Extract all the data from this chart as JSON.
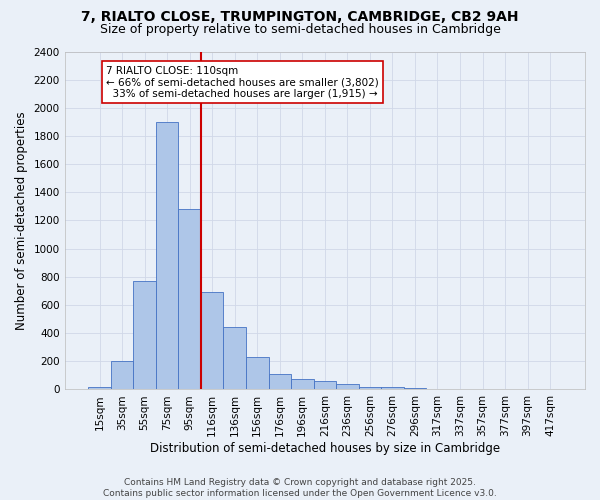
{
  "title_line1": "7, RIALTO CLOSE, TRUMPINGTON, CAMBRIDGE, CB2 9AH",
  "title_line2": "Size of property relative to semi-detached houses in Cambridge",
  "xlabel": "Distribution of semi-detached houses by size in Cambridge",
  "ylabel": "Number of semi-detached properties",
  "categories": [
    "15sqm",
    "35sqm",
    "55sqm",
    "75sqm",
    "95sqm",
    "116sqm",
    "136sqm",
    "156sqm",
    "176sqm",
    "196sqm",
    "216sqm",
    "236sqm",
    "256sqm",
    "276sqm",
    "296sqm",
    "317sqm",
    "337sqm",
    "357sqm",
    "377sqm",
    "397sqm",
    "417sqm"
  ],
  "values": [
    20,
    200,
    770,
    1900,
    1280,
    690,
    440,
    230,
    110,
    75,
    60,
    40,
    20,
    15,
    10,
    5,
    3,
    2,
    1,
    1,
    0
  ],
  "bar_color": "#aec6e8",
  "bar_edge_color": "#4472c4",
  "grid_color": "#d0d8e8",
  "background_color": "#eaf0f8",
  "vline_x_index": 5,
  "vline_color": "#cc0000",
  "annotation_line1": "7 RIALTO CLOSE: 110sqm",
  "annotation_line2": "← 66% of semi-detached houses are smaller (3,802)",
  "annotation_line3": "  33% of semi-detached houses are larger (1,915) →",
  "annotation_box_color": "#ffffff",
  "annotation_box_edge": "#cc0000",
  "ylim": [
    0,
    2400
  ],
  "yticks": [
    0,
    200,
    400,
    600,
    800,
    1000,
    1200,
    1400,
    1600,
    1800,
    2000,
    2200,
    2400
  ],
  "footnote_line1": "Contains HM Land Registry data © Crown copyright and database right 2025.",
  "footnote_line2": "Contains public sector information licensed under the Open Government Licence v3.0.",
  "title_fontsize": 10,
  "subtitle_fontsize": 9,
  "axis_label_fontsize": 8.5,
  "tick_fontsize": 7.5,
  "annotation_fontsize": 7.5,
  "footnote_fontsize": 6.5
}
